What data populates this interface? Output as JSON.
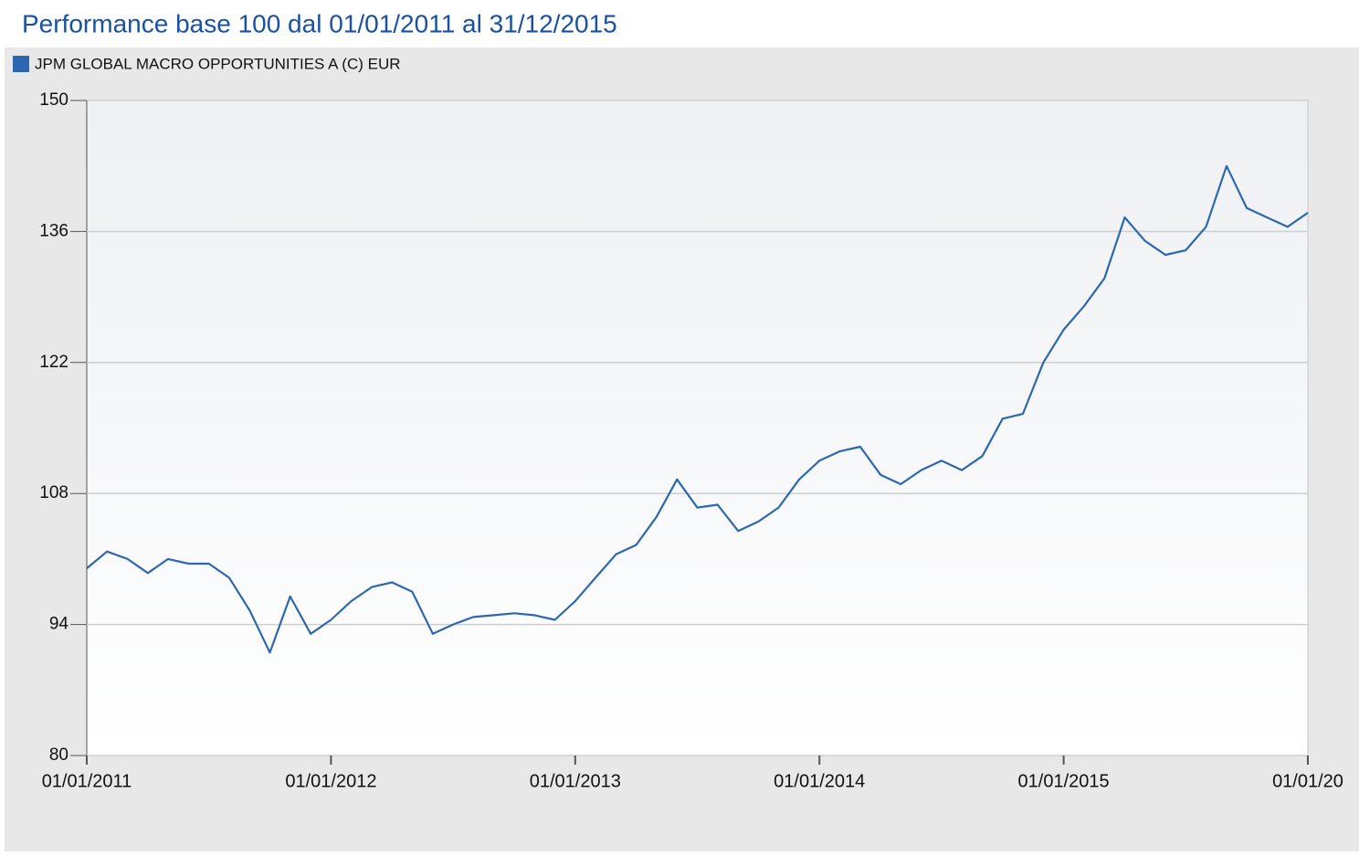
{
  "chart_data": {
    "type": "line",
    "title": "Performance base 100 dal 01/01/2011 al 31/12/2015",
    "x": [
      2011,
      2011.083,
      2011.167,
      2011.25,
      2011.333,
      2011.417,
      2011.5,
      2011.583,
      2011.667,
      2011.75,
      2011.833,
      2011.917,
      2012,
      2012.083,
      2012.167,
      2012.25,
      2012.333,
      2012.417,
      2012.5,
      2012.583,
      2012.667,
      2012.75,
      2012.833,
      2012.917,
      2013,
      2013.083,
      2013.167,
      2013.25,
      2013.333,
      2013.417,
      2013.5,
      2013.583,
      2013.667,
      2013.75,
      2013.833,
      2013.917,
      2014,
      2014.083,
      2014.167,
      2014.25,
      2014.333,
      2014.417,
      2014.5,
      2014.583,
      2014.667,
      2014.75,
      2014.833,
      2014.917,
      2015,
      2015.083,
      2015.167,
      2015.25,
      2015.333,
      2015.417,
      2015.5,
      2015.583,
      2015.667,
      2015.75,
      2015.833,
      2015.917,
      2016
    ],
    "series": [
      {
        "name": "JPM GLOBAL MACRO OPPORTUNITIES A (C) EUR",
        "color": "#2e67b1",
        "values": [
          100,
          101.8,
          101,
          99.5,
          101,
          100.5,
          100.5,
          99,
          95.5,
          91,
          97,
          93,
          94.5,
          96.5,
          98,
          98.5,
          97.5,
          93,
          94,
          94.8,
          95,
          95.2,
          95,
          94.5,
          96.5,
          99,
          101.5,
          102.5,
          105.5,
          109.5,
          106.5,
          106.8,
          104,
          105,
          106.5,
          109.5,
          111.5,
          112.5,
          113,
          110,
          109,
          110.5,
          111.5,
          110.5,
          112,
          116,
          116.5,
          122,
          125.5,
          128,
          131,
          137.5,
          135,
          133.5,
          134,
          136.5,
          143,
          138.5,
          137.5,
          136.5,
          138
        ]
      }
    ],
    "xlim": [
      2011,
      2016
    ],
    "xticks": [
      {
        "value": 2011,
        "label": "01/01/2011"
      },
      {
        "value": 2012,
        "label": "01/01/2012"
      },
      {
        "value": 2013,
        "label": "01/01/2013"
      },
      {
        "value": 2014,
        "label": "01/01/2014"
      },
      {
        "value": 2015,
        "label": "01/01/2015"
      },
      {
        "value": 2016,
        "label": "01/01/20"
      }
    ],
    "ylim": [
      80,
      150
    ],
    "yticks": [
      80,
      94,
      108,
      122,
      136,
      150
    ],
    "grid": true
  }
}
